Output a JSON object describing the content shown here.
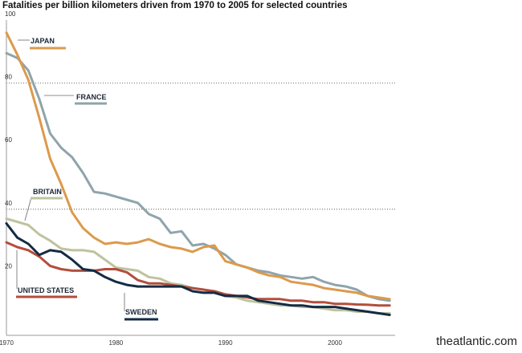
{
  "chart_data": {
    "type": "line",
    "title": "Fatalities per billion kilometers driven from 1970 to 2005 for selected countries",
    "xlim": [
      1970,
      2005.5
    ],
    "ylim": [
      0,
      100
    ],
    "xticks": [
      "1970",
      "1980",
      "1990",
      "2000"
    ],
    "yticks": [
      "20",
      "40",
      "60",
      "80",
      "100"
    ],
    "dotted_gridlines": [
      40,
      80
    ],
    "colors": {
      "japan": "#dc9a4c",
      "france": "#8fa4ab",
      "britain": "#bec39f",
      "united_states": "#b34e3c",
      "sweden": "#142b44",
      "axis": "#999999",
      "grid": "#444444"
    },
    "series": [
      {
        "name": "JAPAN",
        "x": [
          1970,
          1971,
          1972,
          1973,
          1974,
          1975,
          1976,
          1977,
          1978,
          1979,
          1980,
          1981,
          1982,
          1983,
          1984,
          1985,
          1986,
          1987,
          1988,
          1989,
          1990,
          1991,
          1992,
          1993,
          1994,
          1995,
          1996,
          1997,
          1998,
          1999,
          2000,
          2001,
          2002,
          2003,
          2004,
          2005
        ],
        "values": [
          96,
          89,
          81,
          69,
          56,
          48,
          39,
          34,
          31,
          29,
          29.5,
          29,
          29.5,
          30.5,
          29,
          28,
          27.5,
          26.5,
          28,
          28.5,
          23.5,
          22.5,
          21.5,
          20,
          19,
          18.5,
          17,
          16.5,
          16,
          15,
          14.5,
          14,
          13.5,
          12.5,
          12,
          11.5
        ]
      },
      {
        "name": "FRANCE",
        "x": [
          1970,
          1971,
          1972,
          1973,
          1974,
          1975,
          1976,
          1977,
          1978,
          1979,
          1980,
          1981,
          1982,
          1983,
          1984,
          1985,
          1986,
          1987,
          1988,
          1989,
          1990,
          1991,
          1992,
          1993,
          1994,
          1995,
          1996,
          1997,
          1998,
          1999,
          2000,
          2001,
          2002,
          2003,
          2004,
          2005
        ],
        "values": [
          89.5,
          88,
          84,
          75,
          64,
          59.5,
          56.5,
          51.5,
          45.5,
          45,
          44,
          43,
          42,
          38.5,
          37,
          32.5,
          33,
          28.5,
          29,
          27.5,
          25.5,
          22.5,
          21.5,
          20.5,
          20,
          19,
          18.5,
          18,
          18.5,
          17,
          16,
          15.5,
          14.5,
          12.5,
          11.5,
          11
        ]
      },
      {
        "name": "BRITAIN",
        "x": [
          1970,
          1971,
          1972,
          1973,
          1974,
          1975,
          1976,
          1977,
          1978,
          1979,
          1980,
          1981,
          1982,
          1983,
          1984,
          1985,
          1986,
          1987,
          1988,
          1989,
          1990,
          1991,
          1992,
          1993,
          1994,
          1995,
          1996,
          1997,
          1998,
          1999,
          2000,
          2001,
          2002,
          2003,
          2004,
          2005
        ],
        "values": [
          37,
          36,
          35,
          32,
          30,
          27.5,
          27,
          27,
          26.5,
          24,
          21.5,
          21,
          20.5,
          18.5,
          18,
          16.5,
          16,
          15,
          14.5,
          13.5,
          12.5,
          12,
          11,
          10.5,
          10,
          9.5,
          9.5,
          9,
          9,
          8.5,
          8,
          8,
          7.5,
          7.5,
          7,
          7
        ]
      },
      {
        "name": "UNITED STATES",
        "x": [
          1970,
          1971,
          1972,
          1973,
          1974,
          1975,
          1976,
          1977,
          1978,
          1979,
          1980,
          1981,
          1982,
          1983,
          1984,
          1985,
          1986,
          1987,
          1988,
          1989,
          1990,
          1991,
          1992,
          1993,
          1994,
          1995,
          1996,
          1997,
          1998,
          1999,
          2000,
          2001,
          2002,
          2003,
          2004,
          2005
        ],
        "values": [
          29.5,
          28,
          27,
          25,
          22,
          21,
          20.5,
          20.5,
          20.5,
          21,
          21,
          20,
          17.5,
          16.5,
          16.5,
          16,
          15.5,
          15,
          14.5,
          14,
          13,
          12.5,
          12,
          11.5,
          11.5,
          11.5,
          11,
          11,
          10.5,
          10.5,
          10,
          10,
          9.8,
          9.7,
          9.5,
          9.5
        ]
      },
      {
        "name": "SWEDEN",
        "x": [
          1970,
          1971,
          1972,
          1973,
          1974,
          1975,
          1976,
          1977,
          1978,
          1979,
          1980,
          1981,
          1982,
          1983,
          1984,
          1985,
          1986,
          1987,
          1988,
          1989,
          1990,
          1991,
          1992,
          1993,
          1994,
          1995,
          1996,
          1997,
          1998,
          1999,
          2000,
          2001,
          2002,
          2003,
          2004,
          2005
        ],
        "values": [
          35.5,
          31,
          29,
          25.5,
          27,
          26.5,
          24,
          21,
          20.5,
          18.5,
          17,
          16,
          15.5,
          15.5,
          15.5,
          15.5,
          15.5,
          14,
          13.5,
          13.5,
          12.5,
          12.5,
          12.5,
          11,
          10.5,
          10,
          9.5,
          9.5,
          9,
          9,
          9,
          8.5,
          8,
          7.5,
          7,
          6.5
        ]
      }
    ]
  },
  "credit": "theatlantic.com"
}
